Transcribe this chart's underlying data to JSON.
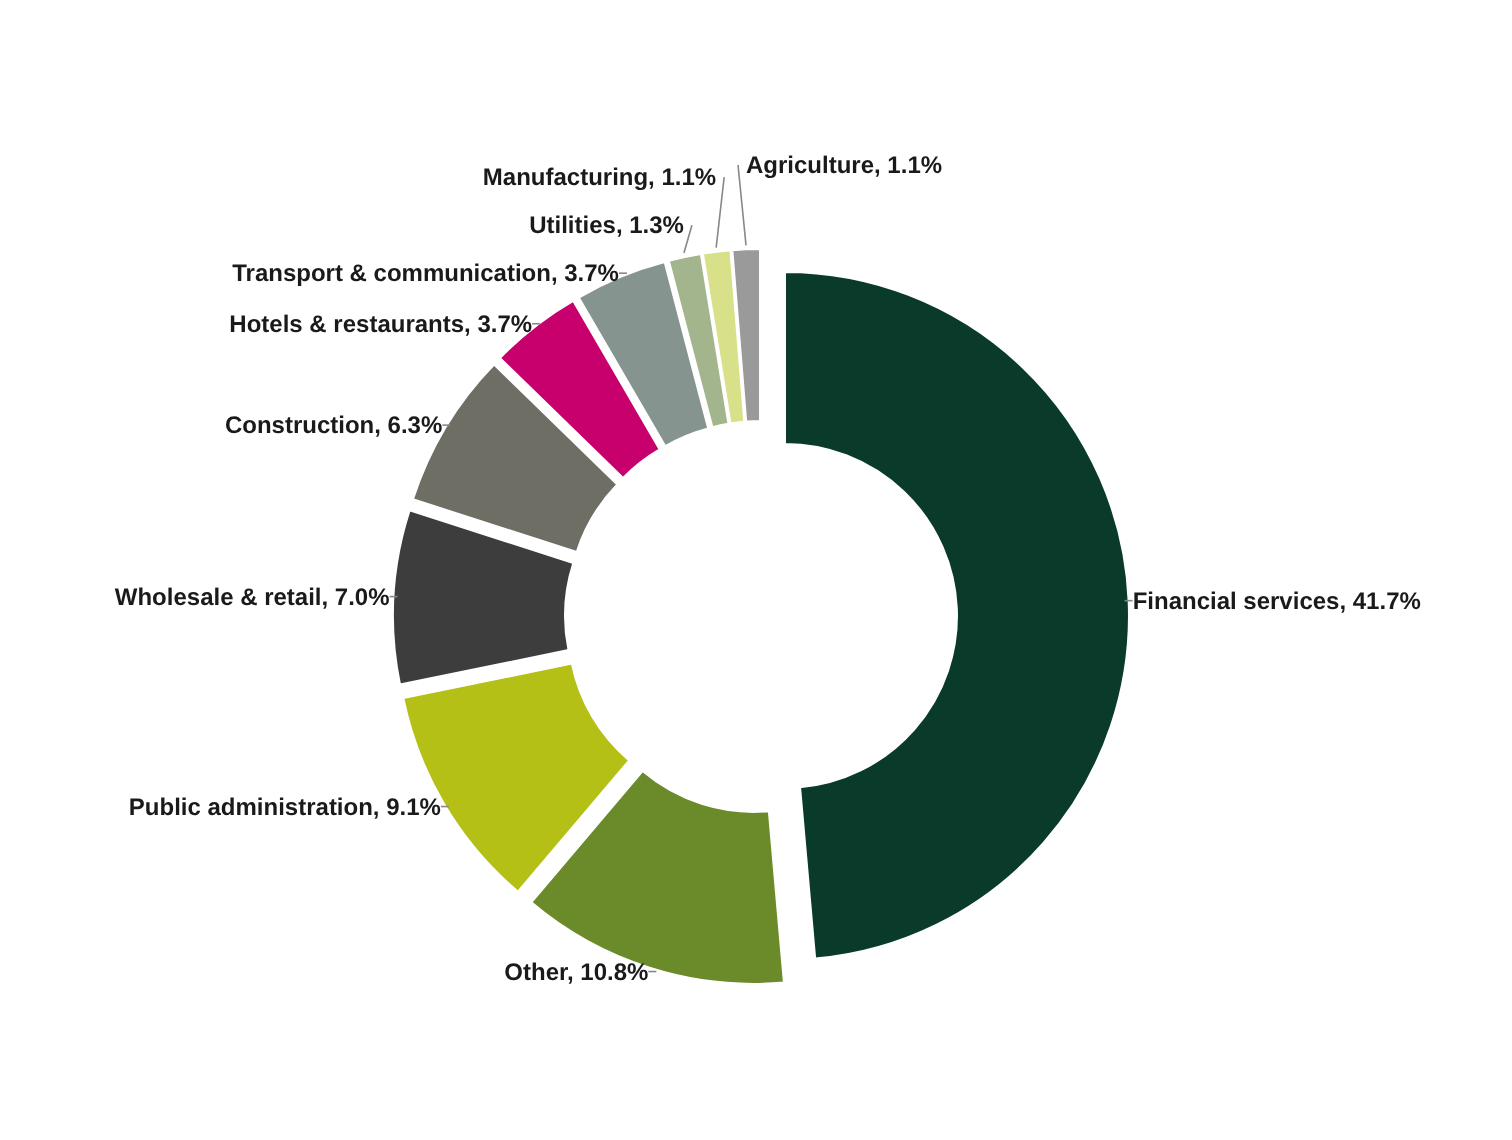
{
  "chart_data": {
    "type": "donut",
    "categories": [
      "Financial services",
      "Other",
      "Public administration",
      "Wholesale & retail",
      "Construction",
      "Hotels & restaurants",
      "Transport & communication",
      "Utilities",
      "Manufacturing",
      "Agriculture"
    ],
    "values": [
      41.7,
      10.8,
      9.1,
      7.0,
      6.3,
      3.7,
      3.7,
      1.3,
      1.1,
      1.1
    ],
    "value_labels": [
      "41.7%",
      "10.8%",
      "9.1%",
      "7.0%",
      "6.3%",
      "3.7%",
      "3.7%",
      "1.3%",
      "1.1%",
      "1.1%"
    ],
    "colors": [
      "#0a3a2a",
      "#6b8a2a",
      "#b5c017",
      "#3d3d3d",
      "#6e6e64",
      "#c8006e",
      "#86948f",
      "#a3b58c",
      "#d8e08a",
      "#9a9a9a"
    ]
  }
}
